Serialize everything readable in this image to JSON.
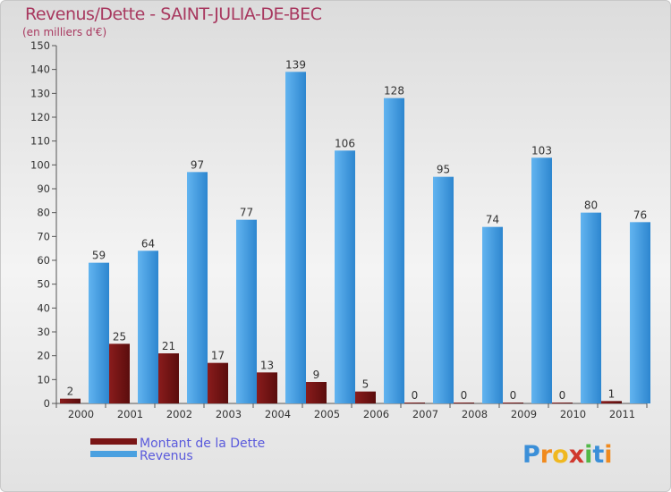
{
  "chart_data": {
    "type": "bar",
    "title": "Revenus/Dette - SAINT-JULIA-DE-BEC",
    "subtitle": "(en milliers d'€)",
    "categories": [
      "2000",
      "2001",
      "2002",
      "2003",
      "2004",
      "2005",
      "2006",
      "2007",
      "2008",
      "2009",
      "2010",
      "2011"
    ],
    "series": [
      {
        "name": "Montant de la Dette",
        "color": "#7a1515",
        "values": [
          2,
          25,
          21,
          17,
          13,
          9,
          5,
          0,
          0,
          0,
          0,
          1
        ]
      },
      {
        "name": "Revenus",
        "color": "#4aa0e0",
        "values": [
          59,
          64,
          97,
          77,
          139,
          106,
          128,
          95,
          74,
          103,
          80,
          76
        ]
      }
    ],
    "ylim": [
      0,
      150
    ],
    "yticks": [
      0,
      10,
      20,
      30,
      40,
      50,
      60,
      70,
      80,
      90,
      100,
      110,
      120,
      130,
      140,
      150
    ],
    "grid": false,
    "legend": "bottom-left"
  },
  "logo": {
    "text": "Proxiti",
    "letters": [
      "P",
      "r",
      "o",
      "x",
      "i",
      "t",
      "i"
    ],
    "colors": [
      "#3b8fd8",
      "#f08a1e",
      "#f0b820",
      "#d0382e",
      "#52b848",
      "#3b8fd8",
      "#f08a1e"
    ]
  }
}
